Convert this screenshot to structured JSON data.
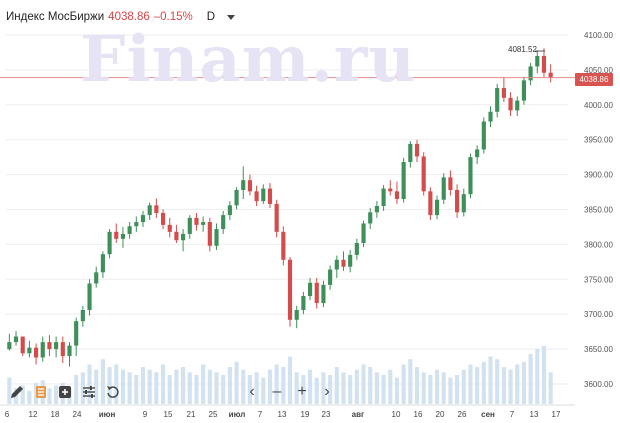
{
  "header": {
    "title": "Индекс МосБиржи",
    "price": "4038.86",
    "change": "–0.15%",
    "interval": "D"
  },
  "watermark": "Finam.ru",
  "price_badge": "4038.86",
  "annotation": "4081.52",
  "navigation": {
    "back": "‹",
    "zoom_out": "–",
    "zoom_in": "+",
    "forward": "›"
  },
  "toolbar": [
    "pencil-icon",
    "layers-icon",
    "add-indicator-icon",
    "settings-icon",
    "reset-icon"
  ],
  "colors": {
    "up": "#3f8f5b",
    "down": "#d44b4b",
    "volume": "#d3e2f0",
    "last_line": "#e28b8b"
  },
  "chart_data": {
    "type": "candlestick",
    "y_axis": {
      "min": 3590,
      "max": 4110,
      "ticks": [
        3600,
        3650,
        3700,
        3750,
        3800,
        3850,
        3900,
        3950,
        4000,
        4050,
        4100
      ]
    },
    "x_ticks": [
      "6",
      "12",
      "18",
      "24",
      "июн",
      "9",
      "15",
      "21",
      "25",
      "июл",
      "7",
      "13",
      "19",
      "23",
      "авг",
      "10",
      "16",
      "20",
      "26",
      "сен",
      "7",
      "13",
      "17"
    ],
    "last_price": 4038.86,
    "high_marker": 4081.52,
    "candles": [
      [
        3650,
        3672,
        3648,
        3660
      ],
      [
        3660,
        3676,
        3655,
        3668
      ],
      [
        3668,
        3668,
        3640,
        3644
      ],
      [
        3644,
        3662,
        3638,
        3652
      ],
      [
        3652,
        3658,
        3628,
        3638
      ],
      [
        3638,
        3668,
        3632,
        3660
      ],
      [
        3660,
        3670,
        3640,
        3650
      ],
      [
        3650,
        3668,
        3638,
        3660
      ],
      [
        3660,
        3668,
        3630,
        3640
      ],
      [
        3640,
        3660,
        3625,
        3655
      ],
      [
        3655,
        3695,
        3640,
        3690
      ],
      [
        3690,
        3712,
        3682,
        3706
      ],
      [
        3706,
        3750,
        3698,
        3744
      ],
      [
        3744,
        3768,
        3738,
        3760
      ],
      [
        3760,
        3790,
        3752,
        3786
      ],
      [
        3786,
        3822,
        3780,
        3818
      ],
      [
        3818,
        3830,
        3802,
        3808
      ],
      [
        3808,
        3825,
        3795,
        3815
      ],
      [
        3815,
        3832,
        3808,
        3826
      ],
      [
        3826,
        3840,
        3818,
        3832
      ],
      [
        3832,
        3848,
        3825,
        3842
      ],
      [
        3842,
        3860,
        3835,
        3856
      ],
      [
        3856,
        3866,
        3838,
        3845
      ],
      [
        3845,
        3850,
        3822,
        3828
      ],
      [
        3828,
        3838,
        3810,
        3818
      ],
      [
        3818,
        3828,
        3802,
        3806
      ],
      [
        3806,
        3822,
        3790,
        3815
      ],
      [
        3815,
        3842,
        3808,
        3838
      ],
      [
        3838,
        3845,
        3820,
        3828
      ],
      [
        3828,
        3840,
        3818,
        3832
      ],
      [
        3832,
        3838,
        3790,
        3798
      ],
      [
        3798,
        3830,
        3792,
        3822
      ],
      [
        3822,
        3848,
        3815,
        3842
      ],
      [
        3842,
        3862,
        3835,
        3856
      ],
      [
        3856,
        3882,
        3850,
        3878
      ],
      [
        3878,
        3912,
        3865,
        3892
      ],
      [
        3892,
        3900,
        3870,
        3876
      ],
      [
        3876,
        3884,
        3855,
        3862
      ],
      [
        3862,
        3886,
        3858,
        3880
      ],
      [
        3880,
        3888,
        3852,
        3858
      ],
      [
        3858,
        3864,
        3810,
        3818
      ],
      [
        3818,
        3826,
        3770,
        3778
      ],
      [
        3778,
        3782,
        3682,
        3692
      ],
      [
        3692,
        3712,
        3680,
        3706
      ],
      [
        3706,
        3732,
        3700,
        3726
      ],
      [
        3726,
        3752,
        3720,
        3745
      ],
      [
        3745,
        3752,
        3708,
        3716
      ],
      [
        3716,
        3748,
        3710,
        3742
      ],
      [
        3742,
        3770,
        3735,
        3764
      ],
      [
        3764,
        3784,
        3752,
        3778
      ],
      [
        3778,
        3790,
        3762,
        3768
      ],
      [
        3768,
        3792,
        3760,
        3785
      ],
      [
        3785,
        3808,
        3778,
        3802
      ],
      [
        3802,
        3834,
        3796,
        3830
      ],
      [
        3830,
        3852,
        3822,
        3846
      ],
      [
        3846,
        3862,
        3838,
        3855
      ],
      [
        3855,
        3885,
        3848,
        3880
      ],
      [
        3880,
        3892,
        3870,
        3876
      ],
      [
        3876,
        3890,
        3858,
        3865
      ],
      [
        3865,
        3924,
        3860,
        3918
      ],
      [
        3918,
        3948,
        3910,
        3944
      ],
      [
        3944,
        3950,
        3918,
        3926
      ],
      [
        3926,
        3932,
        3870,
        3876
      ],
      [
        3876,
        3882,
        3835,
        3842
      ],
      [
        3842,
        3870,
        3836,
        3864
      ],
      [
        3864,
        3902,
        3858,
        3896
      ],
      [
        3896,
        3906,
        3870,
        3878
      ],
      [
        3878,
        3886,
        3838,
        3846
      ],
      [
        3846,
        3880,
        3840,
        3872
      ],
      [
        3872,
        3930,
        3866,
        3925
      ],
      [
        3925,
        3942,
        3915,
        3936
      ],
      [
        3936,
        3982,
        3930,
        3976
      ],
      [
        3976,
        3998,
        3968,
        3990
      ],
      [
        3990,
        4030,
        3982,
        4024
      ],
      [
        4024,
        4040,
        4004,
        4010
      ],
      [
        4010,
        4018,
        3984,
        3992
      ],
      [
        3992,
        4012,
        3984,
        4006
      ],
      [
        4006,
        4040,
        4000,
        4035
      ],
      [
        4035,
        4060,
        4028,
        4055
      ],
      [
        4055,
        4078,
        4045,
        4070
      ],
      [
        4070,
        4081,
        4040,
        4046
      ],
      [
        4046,
        4058,
        4032,
        4039
      ]
    ],
    "volume": [
      20,
      12,
      14,
      10,
      16,
      18,
      12,
      14,
      16,
      12,
      22,
      24,
      30,
      26,
      34,
      28,
      30,
      26,
      24,
      22,
      28,
      26,
      24,
      30,
      22,
      26,
      28,
      24,
      22,
      30,
      26,
      24,
      22,
      28,
      32,
      26,
      22,
      24,
      20,
      26,
      30,
      28,
      36,
      24,
      22,
      26,
      20,
      24,
      22,
      28,
      24,
      22,
      26,
      30,
      28,
      24,
      22,
      26,
      20,
      30,
      34,
      28,
      24,
      22,
      26,
      24,
      20,
      22,
      26,
      30,
      28,
      32,
      36,
      34,
      28,
      26,
      30,
      32,
      38,
      42,
      44,
      24
    ]
  }
}
